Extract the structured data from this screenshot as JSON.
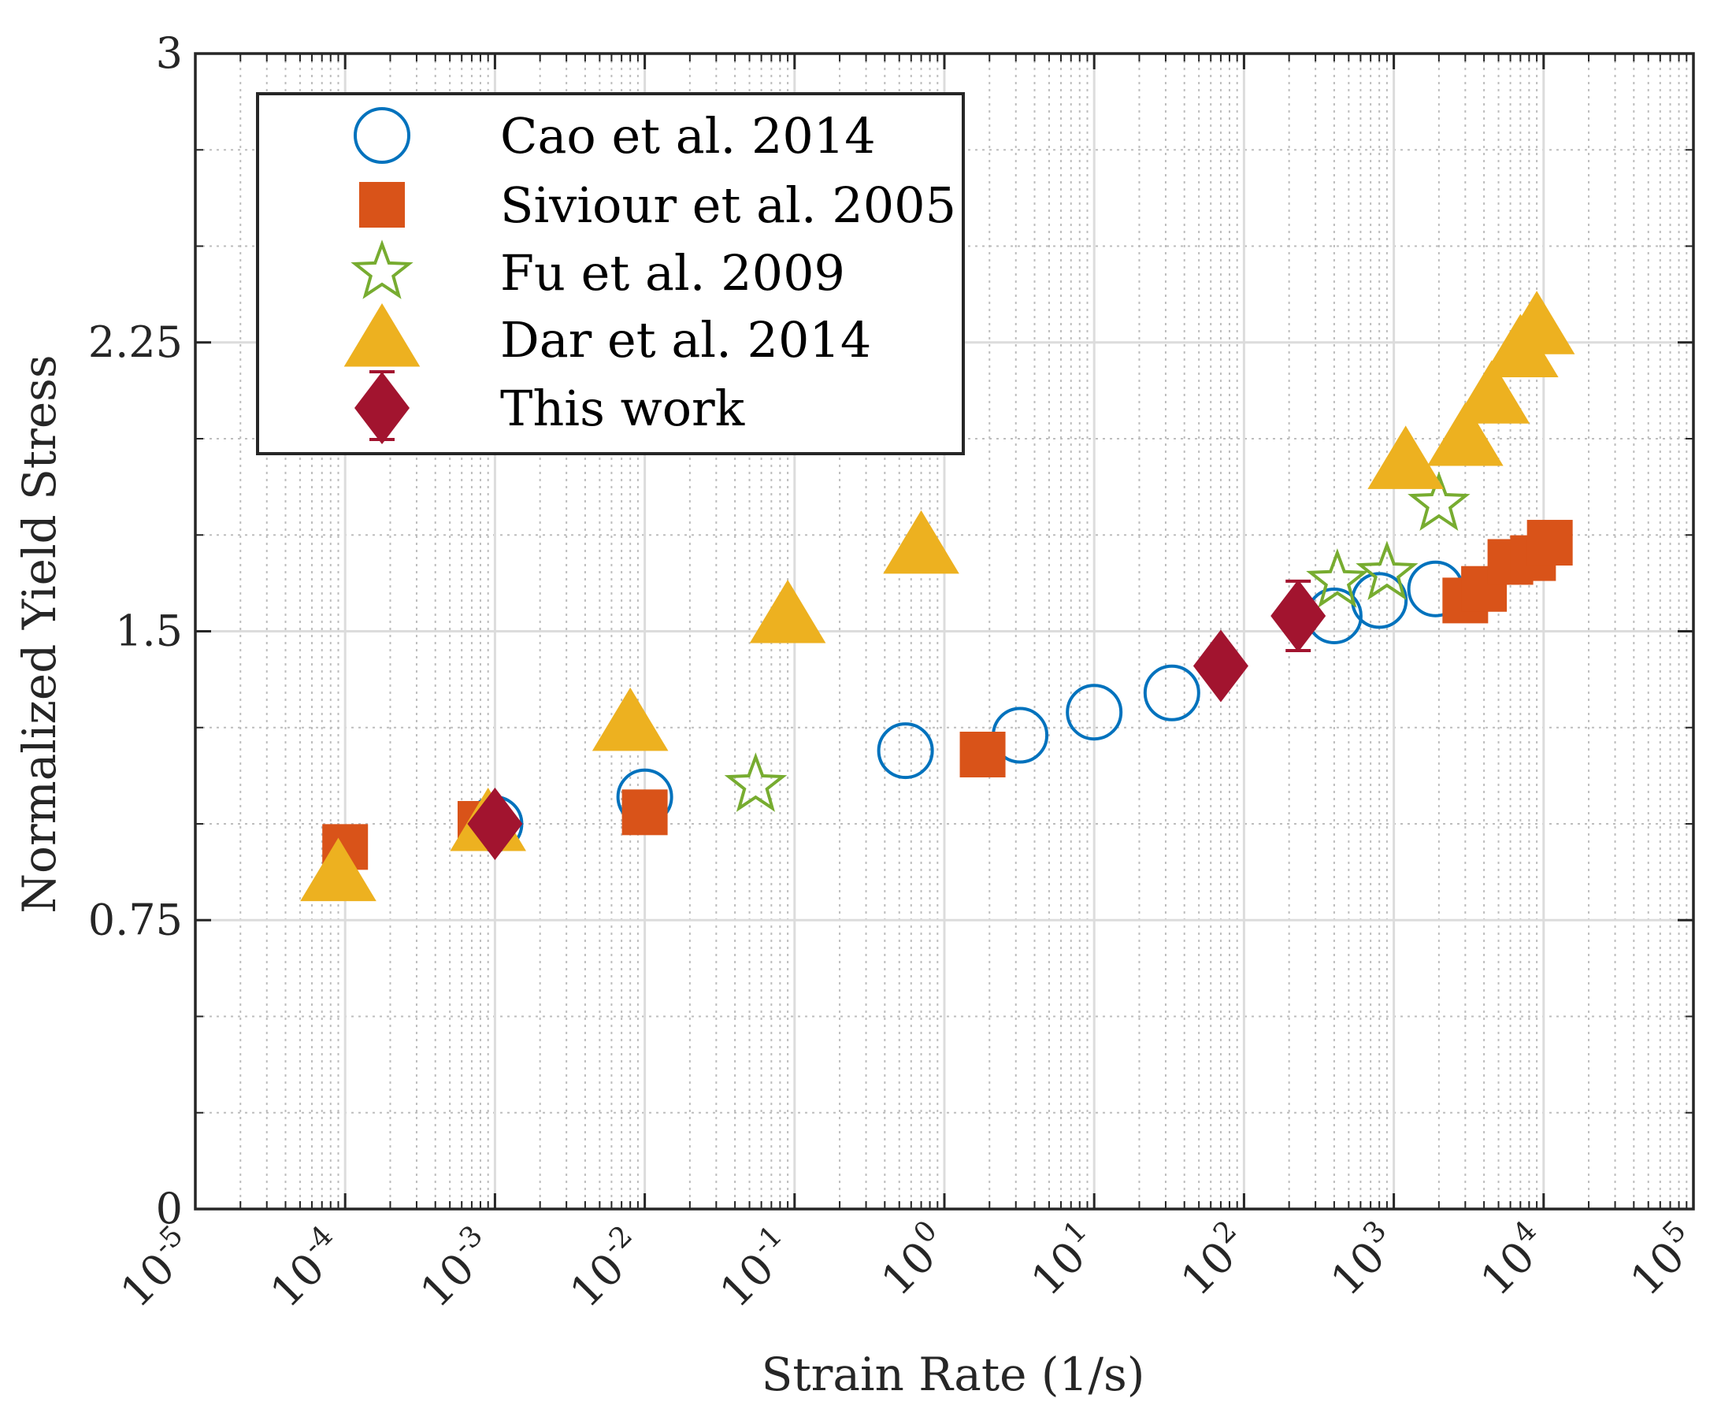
{
  "chart_data": {
    "type": "scatter",
    "xscale": "log",
    "xlabel": "Strain Rate (1/s)",
    "ylabel": "Normalized Yield Stress",
    "xlim": [
      1e-05,
      100000
    ],
    "ylim": [
      0,
      3
    ],
    "grid": true,
    "legend_position": "top-left",
    "x_tick_exponents": [
      "-5",
      "-4",
      "-3",
      "-2",
      "-1",
      "0",
      "1",
      "2",
      "3",
      "4",
      "5"
    ],
    "x_tick_base": "10",
    "y_ticks": [
      0,
      0.75,
      1.5,
      2.25,
      3
    ],
    "y_tick_labels": [
      "0",
      "0.75",
      "1.5",
      "2.25",
      "3"
    ],
    "series": [
      {
        "name": "Cao et al. 2014",
        "marker": "circle",
        "color": "#0072BD",
        "points": [
          [
            0.001,
            1.0
          ],
          [
            0.01,
            1.07
          ],
          [
            0.55,
            1.19
          ],
          [
            3.2,
            1.23
          ],
          [
            10,
            1.29
          ],
          [
            33,
            1.34
          ],
          [
            400,
            1.54
          ],
          [
            800,
            1.58
          ],
          [
            1900,
            1.61
          ]
        ]
      },
      {
        "name": "Siviour et al. 2005",
        "marker": "square",
        "color": "#D95319",
        "points": [
          [
            0.0001,
            0.94
          ],
          [
            0.0008,
            1.0
          ],
          [
            0.01,
            1.03
          ],
          [
            1.8,
            1.18
          ],
          [
            3000,
            1.58
          ],
          [
            4000,
            1.61
          ],
          [
            6000,
            1.68
          ],
          [
            8500,
            1.69
          ],
          [
            11000,
            1.73
          ]
        ]
      },
      {
        "name": "Fu et al. 2009",
        "marker": "star",
        "color": "#77AC30",
        "points": [
          [
            0.055,
            1.1
          ],
          [
            420,
            1.63
          ],
          [
            900,
            1.65
          ],
          [
            2000,
            1.83
          ]
        ]
      },
      {
        "name": "Dar et al. 2014",
        "marker": "triangle",
        "color": "#EDB120",
        "points": [
          [
            9e-05,
            0.87
          ],
          [
            0.0009,
            1.0
          ],
          [
            0.008,
            1.26
          ],
          [
            0.09,
            1.54
          ],
          [
            0.7,
            1.72
          ],
          [
            1200,
            1.94
          ],
          [
            3000,
            2.0
          ],
          [
            4500,
            2.11
          ],
          [
            7000,
            2.23
          ],
          [
            9000,
            2.29
          ]
        ]
      },
      {
        "name": "This work",
        "marker": "diamond",
        "color": "#A2142F",
        "error_bars": true,
        "points": [
          [
            0.001,
            1.0
          ],
          [
            70,
            1.41
          ],
          [
            230,
            1.54
          ]
        ],
        "errors": [
          0,
          0,
          0.09
        ]
      }
    ]
  }
}
